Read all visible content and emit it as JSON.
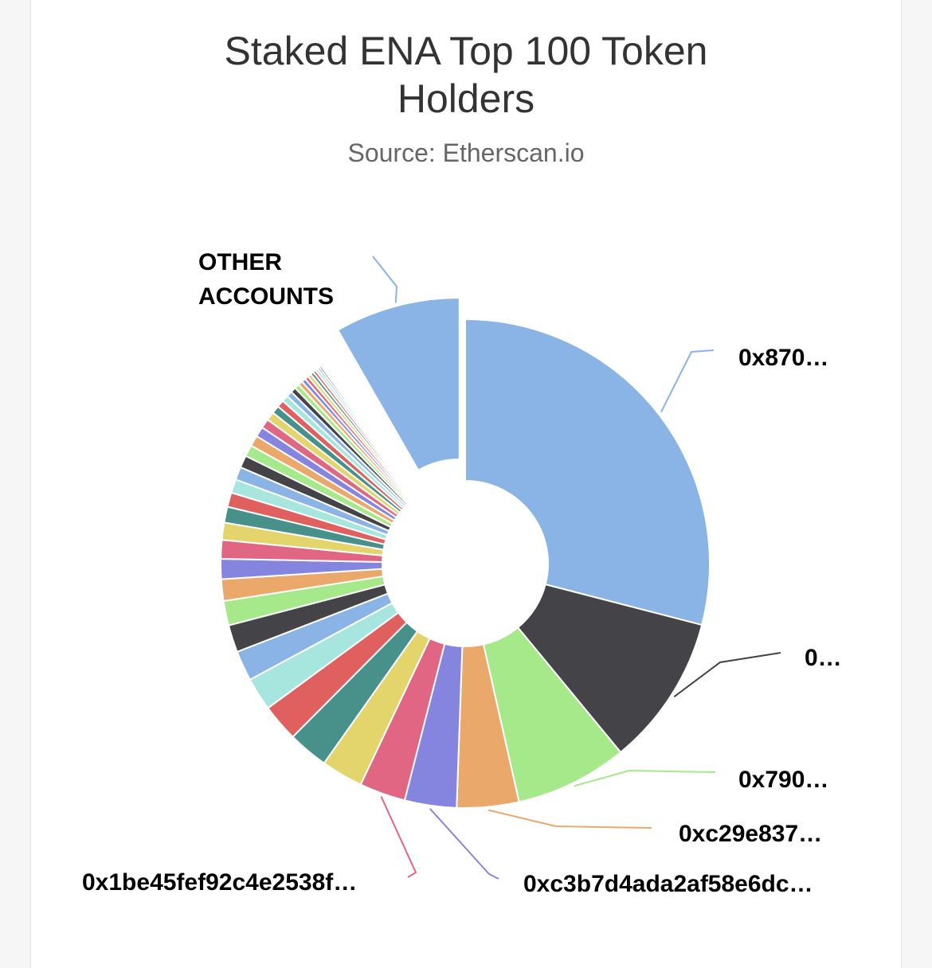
{
  "chart_data": {
    "type": "pie",
    "title": "Staked ENA Top 100 Token Holders",
    "subtitle": "Source: Etherscan.io",
    "labels": {
      "other": [
        "OTHER",
        "ACCOUNTS"
      ],
      "s0": "0x870…",
      "s1": "0…",
      "s2": "0x790…",
      "s3": "0xc29e837…",
      "s4": "0xc3b7d4ada2af58e6dc…",
      "s5": "0x1be45fef92c4e2538f…"
    },
    "slices": [
      {
        "label": "0x870…",
        "value": 30.5,
        "color": "#8ab4e5"
      },
      {
        "label": "0…",
        "value": 10.5,
        "color": "#434348"
      },
      {
        "label": "0x790…",
        "value": 7.8,
        "color": "#a6e98a"
      },
      {
        "label": "0xc29e837…",
        "value": 4.3,
        "color": "#eba86b"
      },
      {
        "label": "0xc3b7d4ada2af58e6dc…",
        "value": 3.6,
        "color": "#8585e0"
      },
      {
        "label": "0x1be45fef92c4e2538f…",
        "value": 3.2,
        "color": "#e06683"
      },
      {
        "label": "",
        "value": 2.9,
        "color": "#e3d46b"
      },
      {
        "label": "",
        "value": 2.8,
        "color": "#48918a"
      },
      {
        "label": "",
        "value": 2.6,
        "color": "#e0605f"
      },
      {
        "label": "",
        "value": 2.3,
        "color": "#a7e6de"
      },
      {
        "label": "",
        "value": 2.1,
        "color": "#8ab4e5"
      },
      {
        "label": "",
        "value": 1.9,
        "color": "#434348"
      },
      {
        "label": "",
        "value": 1.7,
        "color": "#a6e98a"
      },
      {
        "label": "",
        "value": 1.5,
        "color": "#eba86b"
      },
      {
        "label": "",
        "value": 1.4,
        "color": "#8585e0"
      },
      {
        "label": "",
        "value": 1.3,
        "color": "#e06683"
      },
      {
        "label": "",
        "value": 1.2,
        "color": "#e3d46b"
      },
      {
        "label": "",
        "value": 1.1,
        "color": "#48918a"
      },
      {
        "label": "",
        "value": 1.0,
        "color": "#e0605f"
      },
      {
        "label": "",
        "value": 0.95,
        "color": "#a7e6de"
      },
      {
        "label": "",
        "value": 0.9,
        "color": "#8ab4e5"
      },
      {
        "label": "",
        "value": 0.85,
        "color": "#434348"
      },
      {
        "label": "",
        "value": 0.8,
        "color": "#a6e98a"
      },
      {
        "label": "",
        "value": 0.75,
        "color": "#eba86b"
      },
      {
        "label": "",
        "value": 0.7,
        "color": "#8585e0"
      },
      {
        "label": "",
        "value": 0.65,
        "color": "#e06683"
      },
      {
        "label": "",
        "value": 0.6,
        "color": "#e3d46b"
      },
      {
        "label": "",
        "value": 0.55,
        "color": "#48918a"
      },
      {
        "label": "",
        "value": 0.5,
        "color": "#e0605f"
      },
      {
        "label": "",
        "value": 0.45,
        "color": "#a7e6de"
      },
      {
        "label": "",
        "value": 0.4,
        "color": "#8ab4e5"
      },
      {
        "label": "",
        "value": 0.37,
        "color": "#434348"
      },
      {
        "label": "",
        "value": 0.34,
        "color": "#a6e98a"
      },
      {
        "label": "",
        "value": 0.31,
        "color": "#eba86b"
      },
      {
        "label": "",
        "value": 0.28,
        "color": "#8585e0"
      },
      {
        "label": "",
        "value": 0.26,
        "color": "#e06683"
      },
      {
        "label": "",
        "value": 0.24,
        "color": "#e3d46b"
      },
      {
        "label": "",
        "value": 0.22,
        "color": "#48918a"
      },
      {
        "label": "",
        "value": 0.2,
        "color": "#e0605f"
      },
      {
        "label": "",
        "value": 0.18,
        "color": "#a7e6de"
      },
      {
        "label": "",
        "value": 0.16,
        "color": "#8ab4e5"
      },
      {
        "label": "",
        "value": 0.14,
        "color": "#434348"
      },
      {
        "label": "",
        "value": 0.12,
        "color": "#a6e98a"
      },
      {
        "label": "",
        "value": 0.11,
        "color": "#eba86b"
      },
      {
        "label": "",
        "value": 0.1,
        "color": "#8585e0"
      },
      {
        "label": "",
        "value": 0.1,
        "color": "#e06683"
      },
      {
        "label": "",
        "value": 0.1,
        "color": "#e3d46b"
      },
      {
        "label": "",
        "value": 0.1,
        "color": "#48918a"
      },
      {
        "label": "",
        "value": 0.1,
        "color": "#e0605f"
      },
      {
        "label": "",
        "value": 0.1,
        "color": "#a7e6de"
      },
      {
        "label": "",
        "value": 0.1,
        "color": "#8ab4e5"
      },
      {
        "label": "",
        "value": 0.1,
        "color": "#434348"
      },
      {
        "label": "",
        "value": 0.1,
        "color": "#a6e98a"
      },
      {
        "label": "",
        "value": 0.1,
        "color": "#eba86b"
      },
      {
        "label": "",
        "value": 0.1,
        "color": "#8585e0"
      },
      {
        "label": "",
        "value": 0.1,
        "color": "#e06683"
      },
      {
        "label": "",
        "value": 0.1,
        "color": "#e3d46b"
      },
      {
        "label": "",
        "value": 0.1,
        "color": "#48918a"
      },
      {
        "label": "",
        "value": 0.1,
        "color": "#e0605f"
      },
      {
        "label": "",
        "value": 0.1,
        "color": "#a7e6de"
      },
      {
        "label": "OTHER ACCOUNTS",
        "value": 8.7,
        "color": "#8ab4e5",
        "sliced": true
      }
    ]
  }
}
